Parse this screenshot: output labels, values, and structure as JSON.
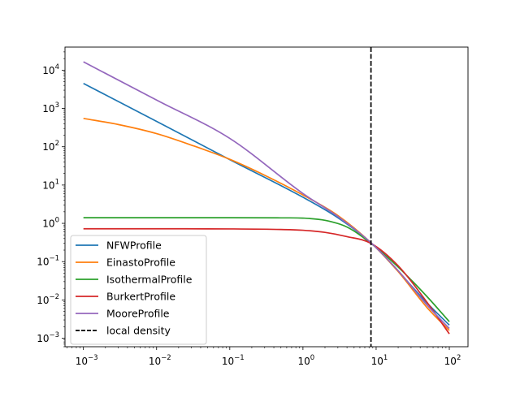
{
  "chart_data": {
    "type": "line",
    "title": "",
    "xlabel": "",
    "ylabel": "",
    "xscale": "log",
    "yscale": "log",
    "xlim": [
      0.00056,
      180
    ],
    "ylim": [
      0.0006,
      40000
    ],
    "grid": false,
    "legend_position": "lower-left",
    "x_ticks": [
      {
        "value": 0.001,
        "mantissa": "10",
        "exp": "−3"
      },
      {
        "value": 0.01,
        "mantissa": "10",
        "exp": "−2"
      },
      {
        "value": 0.1,
        "mantissa": "10",
        "exp": "−1"
      },
      {
        "value": 1,
        "mantissa": "10",
        "exp": "0"
      },
      {
        "value": 10,
        "mantissa": "10",
        "exp": "1"
      },
      {
        "value": 100,
        "mantissa": "10",
        "exp": "2"
      }
    ],
    "y_ticks": [
      {
        "value": 0.001,
        "mantissa": "10",
        "exp": "−3"
      },
      {
        "value": 0.01,
        "mantissa": "10",
        "exp": "−2"
      },
      {
        "value": 0.1,
        "mantissa": "10",
        "exp": "−1"
      },
      {
        "value": 1,
        "mantissa": "10",
        "exp": "0"
      },
      {
        "value": 10,
        "mantissa": "10",
        "exp": "1"
      },
      {
        "value": 100,
        "mantissa": "10",
        "exp": "2"
      },
      {
        "value": 1000,
        "mantissa": "10",
        "exp": "3"
      },
      {
        "value": 10000,
        "mantissa": "10",
        "exp": "4"
      }
    ],
    "series": [
      {
        "name": "NFWProfile",
        "color": "#1f77b4",
        "x": [
          0.001,
          0.01,
          0.1,
          1,
          3,
          8.5,
          20,
          50,
          100
        ],
        "y": [
          4500,
          460,
          46,
          4.8,
          1.4,
          0.31,
          0.056,
          0.0082,
          0.0022
        ]
      },
      {
        "name": "EinastoProfile",
        "color": "#ff7f0e",
        "x": [
          0.001,
          0.003,
          0.01,
          0.03,
          0.1,
          0.3,
          1,
          3,
          8.5,
          20,
          50,
          100
        ],
        "y": [
          550,
          380,
          220,
          110,
          47,
          18,
          5.5,
          1.6,
          0.31,
          0.055,
          0.0062,
          0.0016
        ]
      },
      {
        "name": "IsothermalProfile",
        "color": "#2ca02c",
        "x": [
          0.001,
          0.01,
          0.1,
          0.5,
          1,
          2,
          4,
          8.5,
          20,
          50,
          100
        ],
        "y": [
          1.4,
          1.4,
          1.4,
          1.39,
          1.37,
          1.2,
          0.8,
          0.3,
          0.072,
          0.012,
          0.0027
        ]
      },
      {
        "name": "BurkertProfile",
        "color": "#d62728",
        "x": [
          0.001,
          0.01,
          0.1,
          0.5,
          1,
          2,
          4,
          8.5,
          20,
          50,
          100
        ],
        "y": [
          0.72,
          0.72,
          0.715,
          0.69,
          0.66,
          0.58,
          0.45,
          0.3,
          0.078,
          0.0085,
          0.0013
        ]
      },
      {
        "name": "MooreProfile",
        "color": "#9467bd",
        "x": [
          0.001,
          0.01,
          0.1,
          1,
          3,
          8.5,
          20,
          50,
          100
        ],
        "y": [
          16500,
          1650,
          165,
          6.0,
          1.5,
          0.31,
          0.058,
          0.0072,
          0.0018
        ]
      }
    ],
    "reference_lines": [
      {
        "name": "local density",
        "orientation": "vertical",
        "x": 8.5,
        "color": "#000000",
        "style": "dashed"
      }
    ]
  }
}
